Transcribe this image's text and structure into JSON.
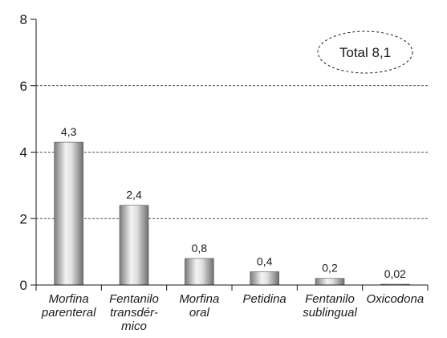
{
  "chart_data": {
    "type": "bar",
    "categories": [
      [
        "Morfina",
        "parenteral"
      ],
      [
        "Fentanilo",
        "transdér-",
        "mico"
      ],
      [
        "Morfina",
        "oral"
      ],
      [
        "Petidina"
      ],
      [
        "Fentanilo",
        "sublingual"
      ],
      [
        "Oxicodona"
      ]
    ],
    "values": [
      4.3,
      2.4,
      0.8,
      0.4,
      0.2,
      0.02
    ],
    "value_labels": [
      "4,3",
      "2,4",
      "0,8",
      "0,4",
      "0,2",
      "0,02"
    ],
    "ylim": [
      0,
      8
    ],
    "yticks": [
      0,
      2,
      4,
      6,
      8
    ],
    "ytick_labels": [
      "0",
      "2",
      "4",
      "6",
      "8"
    ],
    "gridlines": [
      2,
      4,
      6
    ],
    "grid_style": "dashed",
    "annotation": "Total 8,1",
    "colors": {
      "bar_dark": "#6e6e6e",
      "bar_light": "#f4f4f4",
      "axis": "#1a1a1a"
    }
  }
}
